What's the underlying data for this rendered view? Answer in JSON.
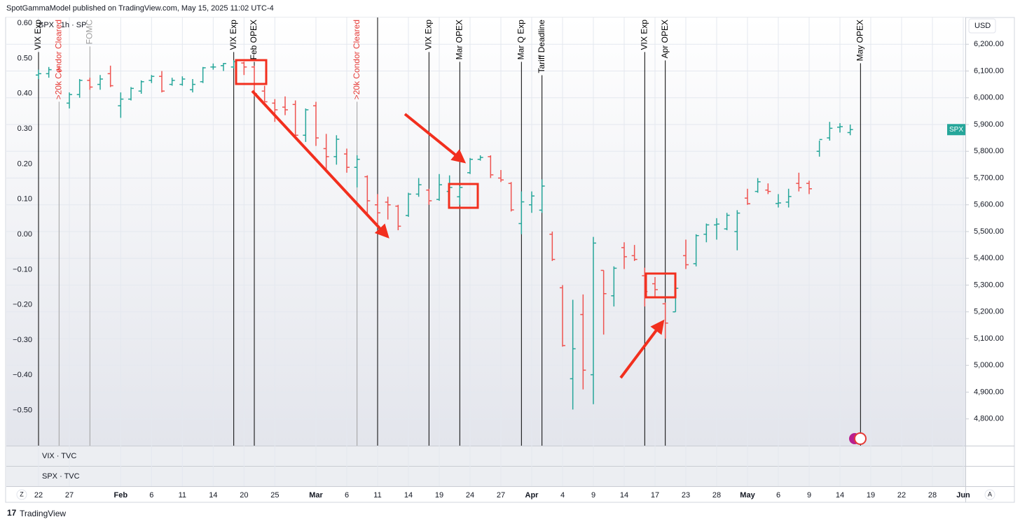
{
  "chart_data": {
    "type": "ohlc",
    "title": "SpotGammaModel published on TradingView.com, May 15, 2025 11:02 UTC-4",
    "symbol_label": "SPX · 1h · SP",
    "currency": "USD",
    "price_tag": "SPX",
    "panes": [
      "VIX · TVC",
      "SPX · TVC"
    ],
    "footer": "TradingView",
    "corner_labels": [
      "Z",
      "A"
    ],
    "up_color": "#26a69a",
    "down_color": "#ef5350",
    "grid": true,
    "categories": [
      "01-22",
      "01-23",
      "01-24",
      "01-27",
      "01-28",
      "01-29",
      "01-30",
      "01-31",
      "02-03",
      "02-04",
      "02-05",
      "02-06",
      "02-07",
      "02-10",
      "02-11",
      "02-12",
      "02-13",
      "02-14",
      "02-18",
      "02-19",
      "02-20",
      "02-21",
      "02-24",
      "02-25",
      "02-26",
      "02-27",
      "02-28",
      "03-03",
      "03-04",
      "03-05",
      "03-06",
      "03-07",
      "03-10",
      "03-11",
      "03-12",
      "03-13",
      "03-14",
      "03-17",
      "03-18",
      "03-19",
      "03-20",
      "03-21",
      "03-24",
      "03-25",
      "03-26",
      "03-27",
      "03-28",
      "03-31",
      "04-01",
      "04-02",
      "04-03",
      "04-04",
      "04-07",
      "04-08",
      "04-09",
      "04-10",
      "04-11",
      "04-14",
      "04-15",
      "04-16",
      "04-17",
      "04-21",
      "04-22",
      "04-23",
      "04-24",
      "04-25",
      "04-28",
      "04-29",
      "04-30",
      "05-01",
      "05-02",
      "05-05",
      "05-06",
      "05-07",
      "05-08",
      "05-09",
      "05-12",
      "05-13",
      "05-14",
      "05-15",
      "05-16",
      "05-19",
      "05-20",
      "05-21",
      "05-22",
      "05-23",
      "05-27",
      "05-28",
      "05-29",
      "05-30",
      "06-02"
    ],
    "open": [
      6085,
      6090,
      6105,
      5980,
      6012,
      6065,
      6050,
      6090,
      5970,
      5995,
      6025,
      6065,
      6080,
      6050,
      6050,
      6030,
      6060,
      6115,
      6120,
      6115,
      6130,
      6115,
      6025,
      5980,
      5965,
      5975,
      5860,
      5970,
      5810,
      5780,
      5790,
      5740,
      5705,
      5600,
      5610,
      5595,
      5560,
      5640,
      5655,
      5620,
      5650,
      5630,
      5720,
      5770,
      5780,
      5700,
      5680,
      5530,
      5600,
      5580,
      5490,
      5290,
      4950,
      5190,
      4965,
      5355,
      5260,
      5440,
      5410,
      5335,
      5305,
      5230,
      5200,
      5410,
      5380,
      5490,
      5525,
      5510,
      5500,
      5625,
      5650,
      5655,
      5605,
      5610,
      5680,
      5680,
      5800,
      5850,
      5890,
      5870,
      null,
      null,
      null,
      null,
      null,
      null,
      null,
      null,
      null,
      null,
      null
    ],
    "high": [
      6105,
      6115,
      6120,
      6020,
      6070,
      6075,
      6085,
      6120,
      6020,
      6040,
      6065,
      6085,
      6100,
      6075,
      6080,
      6070,
      6115,
      6128,
      6130,
      6140,
      6135,
      6120,
      6045,
      5995,
      6005,
      5990,
      5960,
      5985,
      5865,
      5860,
      5810,
      5785,
      5710,
      5640,
      5630,
      5600,
      5645,
      5700,
      5660,
      5715,
      5710,
      5670,
      5775,
      5785,
      5785,
      5730,
      5685,
      5650,
      5650,
      5695,
      5500,
      5300,
      5245,
      5265,
      5480,
      5355,
      5370,
      5460,
      5450,
      5365,
      5330,
      5235,
      5310,
      5470,
      5490,
      5530,
      5550,
      5570,
      5580,
      5660,
      5700,
      5680,
      5640,
      5660,
      5720,
      5690,
      5840,
      5910,
      5905,
      5900,
      null,
      null,
      null,
      null,
      null,
      null,
      null,
      null,
      null,
      null,
      null
    ],
    "low": [
      6070,
      6075,
      6095,
      5960,
      6000,
      6030,
      6030,
      6040,
      5925,
      5990,
      6015,
      6055,
      6020,
      6045,
      6045,
      6020,
      6055,
      6105,
      6100,
      6110,
      6085,
      6005,
      5985,
      5910,
      5935,
      5855,
      5835,
      5820,
      5730,
      5750,
      5720,
      5665,
      5565,
      5530,
      5545,
      5505,
      5555,
      5630,
      5600,
      5615,
      5640,
      5600,
      5715,
      5765,
      5700,
      5685,
      5575,
      5490,
      5570,
      5570,
      5390,
      5070,
      4835,
      4910,
      4855,
      5115,
      5220,
      5360,
      5390,
      5220,
      5255,
      5100,
      5200,
      5360,
      5370,
      5460,
      5470,
      5505,
      5430,
      5600,
      5645,
      5640,
      5590,
      5590,
      5650,
      5640,
      5780,
      5840,
      5870,
      5860,
      null,
      null,
      null,
      null,
      null,
      null,
      null,
      null,
      null,
      null,
      null
    ],
    "close": [
      6090,
      6105,
      6100,
      6012,
      6065,
      6040,
      6070,
      6045,
      5995,
      6035,
      6060,
      6080,
      6025,
      6065,
      6070,
      6050,
      6112,
      6115,
      6128,
      6135,
      6115,
      6015,
      5985,
      5955,
      5955,
      5860,
      5955,
      5850,
      5780,
      5845,
      5740,
      5770,
      5615,
      5570,
      5600,
      5520,
      5640,
      5675,
      5615,
      5675,
      5665,
      5665,
      5770,
      5777,
      5712,
      5693,
      5581,
      5611,
      5633,
      5670,
      5396,
      5074,
      5062,
      4982,
      5457,
      5268,
      5363,
      5406,
      5396,
      5276,
      5283,
      5158,
      5288,
      5376,
      5485,
      5525,
      5528,
      5561,
      5569,
      5604,
      5686,
      5650,
      5607,
      5631,
      5664,
      5660,
      5844,
      5886,
      5892,
      5881,
      null,
      null,
      null,
      null,
      null,
      null,
      null,
      null,
      null,
      null,
      null
    ],
    "ylim": [
      4700,
      6300
    ],
    "yticks": [
      {
        "value": 6200,
        "label": "6,200.00"
      },
      {
        "value": 6100,
        "label": "6,100.00"
      },
      {
        "value": 6000,
        "label": "6,000.00"
      },
      {
        "value": 5900,
        "label": "5,900.00"
      },
      {
        "value": 5800,
        "label": "5,800.00"
      },
      {
        "value": 5700,
        "label": "5,700.00"
      },
      {
        "value": 5600,
        "label": "5,600.00"
      },
      {
        "value": 5500,
        "label": "5,500.00"
      },
      {
        "value": 5400,
        "label": "5,400.00"
      },
      {
        "value": 5300,
        "label": "5,300.00"
      },
      {
        "value": 5200,
        "label": "5,200.00"
      },
      {
        "value": 5100,
        "label": "5,100.00"
      },
      {
        "value": 5000,
        "label": "5,000.00"
      },
      {
        "value": 4900,
        "label": "4,900.00"
      },
      {
        "value": 4800,
        "label": "4,800.00"
      }
    ],
    "y2lim": [
      -0.6,
      0.616
    ],
    "y2ticks": [
      {
        "value": 0.6,
        "label": "0.60"
      },
      {
        "value": 0.5,
        "label": "0.50"
      },
      {
        "value": 0.4,
        "label": "0.40"
      },
      {
        "value": 0.3,
        "label": "0.30"
      },
      {
        "value": 0.2,
        "label": "0.20"
      },
      {
        "value": 0.1,
        "label": "0.10"
      },
      {
        "value": 0,
        "label": "0.00"
      },
      {
        "value": -0.1,
        "label": "−0.10"
      },
      {
        "value": -0.2,
        "label": "−0.20"
      },
      {
        "value": -0.3,
        "label": "−0.30"
      },
      {
        "value": -0.4,
        "label": "−0.40"
      },
      {
        "value": -0.5,
        "label": "−0.50"
      }
    ],
    "xticks": [
      {
        "value": "01-22",
        "label": "22"
      },
      {
        "value": "01-27",
        "label": "27"
      },
      {
        "value": "02-03",
        "label": "Feb"
      },
      {
        "value": "02-06",
        "label": "6"
      },
      {
        "value": "02-11",
        "label": "11"
      },
      {
        "value": "02-14",
        "label": "14"
      },
      {
        "value": "02-20",
        "label": "20"
      },
      {
        "value": "02-25",
        "label": "25"
      },
      {
        "value": "03-03",
        "label": "Mar"
      },
      {
        "value": "03-06",
        "label": "6"
      },
      {
        "value": "03-11",
        "label": "11"
      },
      {
        "value": "03-14",
        "label": "14"
      },
      {
        "value": "03-19",
        "label": "19"
      },
      {
        "value": "03-24",
        "label": "24"
      },
      {
        "value": "03-27",
        "label": "27"
      },
      {
        "value": "04-01",
        "label": "Apr"
      },
      {
        "value": "04-04",
        "label": "4"
      },
      {
        "value": "04-09",
        "label": "9"
      },
      {
        "value": "04-14",
        "label": "14"
      },
      {
        "value": "04-17",
        "label": "17"
      },
      {
        "value": "04-23",
        "label": "23"
      },
      {
        "value": "04-28",
        "label": "28"
      },
      {
        "value": "05-01",
        "label": "May"
      },
      {
        "value": "05-06",
        "label": "6"
      },
      {
        "value": "05-09",
        "label": "9"
      },
      {
        "value": "05-14",
        "label": "14"
      },
      {
        "value": "05-19",
        "label": "19"
      },
      {
        "value": "05-22",
        "label": "22"
      },
      {
        "value": "05-28",
        "label": "28"
      },
      {
        "value": "06-02",
        "label": "Jun"
      }
    ],
    "events": [
      {
        "date": "01-22",
        "label": "VIX Exp",
        "color": "#000000"
      },
      {
        "date": "01-24",
        "label": ">20k Condor Cleared",
        "color": "#e53935"
      },
      {
        "date": "01-29",
        "label": "FOMC",
        "color": "#9e9e9e"
      },
      {
        "date": "02-19",
        "label": "VIX Exp",
        "color": "#000000"
      },
      {
        "date": "02-21",
        "label": "Feb OPEX",
        "color": "#000000"
      },
      {
        "date": "03-07",
        "label": ">20k Condor Cleared",
        "color": "#e53935"
      },
      {
        "date": "03-11",
        "color": "#000000"
      },
      {
        "date": "03-18",
        "label": "VIX Exp",
        "color": "#000000"
      },
      {
        "date": "03-21",
        "label": "Mar OPEX",
        "color": "#000000"
      },
      {
        "date": "03-31",
        "label": "Mar Q Exp",
        "color": "#000000"
      },
      {
        "date": "04-02",
        "label": "Tariff Deadline",
        "color": "#000000"
      },
      {
        "date": "04-16",
        "label": "VIX Exp",
        "color": "#000000"
      },
      {
        "date": "04-21",
        "label": "Apr OPEX",
        "color": "#000000"
      },
      {
        "date": "05-16",
        "label": "May OPEX",
        "color": "#000000"
      }
    ]
  }
}
